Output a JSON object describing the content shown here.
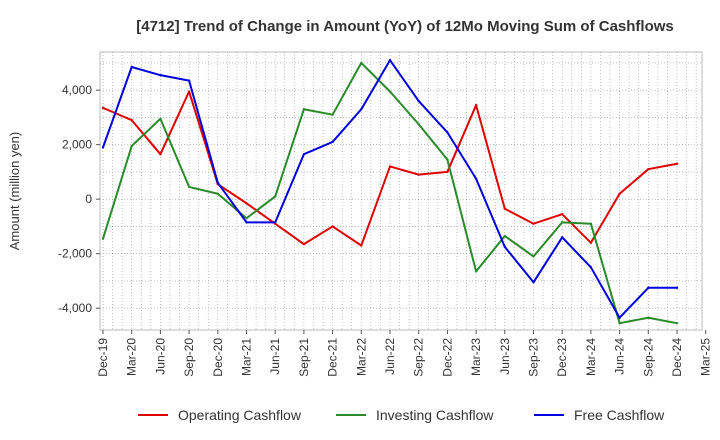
{
  "chart_data": {
    "type": "line",
    "title": "[4712]  Trend of Change in Amount (YoY) of 12Mo Moving Sum of Cashflows",
    "xlabel": "",
    "ylabel": "Amount (million yen)",
    "ylim": [
      -4800,
      5400
    ],
    "yticks": [
      {
        "value": 4000,
        "label": "4,000"
      },
      {
        "value": 2000,
        "label": "2,000"
      },
      {
        "value": 0,
        "label": "0"
      },
      {
        "value": -2000,
        "label": "-2,000"
      },
      {
        "value": -4000,
        "label": "-4,000"
      }
    ],
    "categories": [
      "Dec-19",
      "Mar-20",
      "Jun-20",
      "Sep-20",
      "Dec-20",
      "Mar-21",
      "Jun-21",
      "Sep-21",
      "Dec-21",
      "Mar-22",
      "Jun-22",
      "Sep-22",
      "Dec-22",
      "Mar-23",
      "Jun-23",
      "Sep-23",
      "Dec-23",
      "Mar-24",
      "Jun-24",
      "Sep-24",
      "Dec-24",
      "Mar-25"
    ],
    "grid": true,
    "legend_position": "bottom",
    "series": [
      {
        "name": "Operating Cashflow",
        "color": "#e00000",
        "values": [
          3350,
          2900,
          1650,
          3950,
          550,
          -150,
          -900,
          -1650,
          -1000,
          -1700,
          1200,
          900,
          1000,
          3450,
          -350,
          -900,
          -550,
          -1600,
          200,
          1100,
          1300,
          null
        ]
      },
      {
        "name": "Investing Cashflow",
        "color": "#2a8a2a",
        "values": [
          -1450,
          1950,
          2950,
          450,
          200,
          -700,
          100,
          3300,
          3100,
          5000,
          3950,
          2750,
          1450,
          -2650,
          -1350,
          -2100,
          -850,
          -900,
          -4550,
          -4350,
          -4550,
          null
        ]
      },
      {
        "name": "Free Cashflow",
        "color": "#0000e0",
        "values": [
          1900,
          4850,
          4550,
          4350,
          600,
          -850,
          -850,
          1650,
          2100,
          3300,
          5100,
          3600,
          2450,
          750,
          -1750,
          -3050,
          -1400,
          -2500,
          -4350,
          -3250,
          -3250,
          null
        ]
      }
    ]
  }
}
